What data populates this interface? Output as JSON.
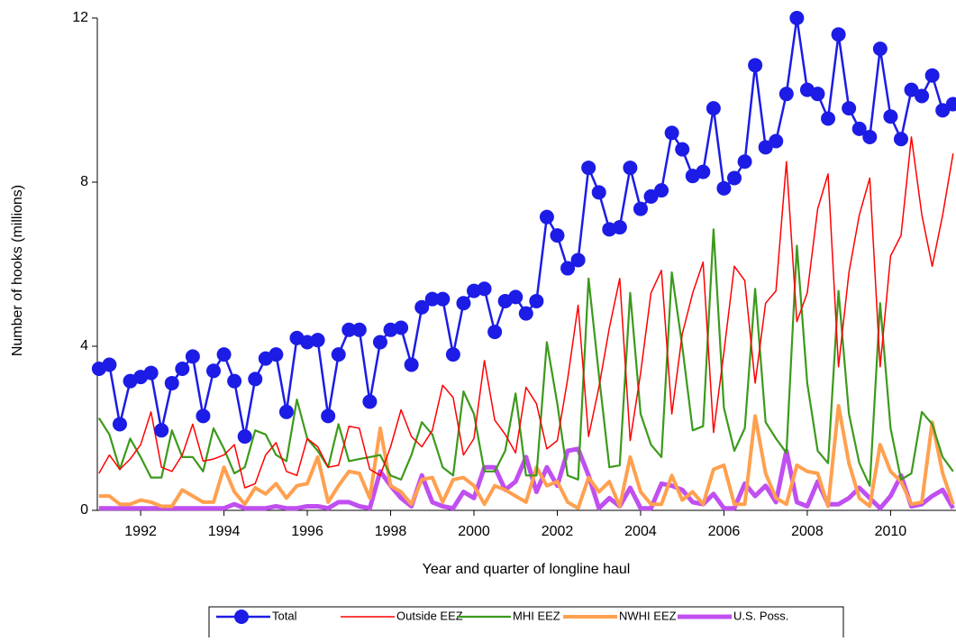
{
  "chart_data": {
    "type": "line",
    "y_label": "Number of hooks (millions)",
    "x_label": "Year and quarter of longline haul",
    "x": [
      1991,
      1991.25,
      1991.5,
      1991.75,
      1992,
      1992.25,
      1992.5,
      1992.75,
      1993,
      1993.25,
      1993.5,
      1993.75,
      1994,
      1994.25,
      1994.5,
      1994.75,
      1995,
      1995.25,
      1995.5,
      1995.75,
      1996,
      1996.25,
      1996.5,
      1996.75,
      1997,
      1997.25,
      1997.5,
      1997.75,
      1998,
      1998.25,
      1998.5,
      1998.75,
      1999,
      1999.25,
      1999.5,
      1999.75,
      2000,
      2000.25,
      2000.5,
      2000.75,
      2001,
      2001.25,
      2001.5,
      2001.75,
      2002,
      2002.25,
      2002.5,
      2002.75,
      2003,
      2003.25,
      2003.5,
      2003.75,
      2004,
      2004.25,
      2004.5,
      2004.75,
      2005,
      2005.25,
      2005.5,
      2005.75,
      2006,
      2006.25,
      2006.5,
      2006.75,
      2007,
      2007.25,
      2007.5,
      2007.75,
      2008,
      2008.25,
      2008.5,
      2008.75,
      2009,
      2009.25,
      2009.5,
      2009.75,
      2010,
      2010.25,
      2010.5,
      2010.75,
      2011,
      2011.25,
      2011.5
    ],
    "series": [
      {
        "name": "Total",
        "color": "#1c1ce6",
        "marker": "circle",
        "values": [
          3.45,
          3.55,
          2.1,
          3.15,
          3.25,
          3.35,
          1.95,
          3.1,
          3.45,
          3.75,
          2.3,
          3.4,
          3.8,
          3.15,
          1.8,
          3.2,
          3.7,
          3.8,
          2.4,
          4.2,
          4.1,
          4.15,
          2.3,
          3.8,
          4.4,
          4.4,
          2.65,
          4.1,
          4.4,
          4.45,
          3.55,
          4.95,
          5.15,
          5.15,
          3.8,
          5.05,
          5.35,
          5.4,
          4.35,
          5.1,
          5.2,
          4.8,
          5.1,
          7.15,
          6.7,
          5.9,
          6.1,
          8.35,
          7.75,
          6.85,
          6.9,
          8.35,
          7.35,
          7.65,
          7.8,
          9.2,
          8.8,
          8.15,
          8.25,
          9.8,
          7.85,
          8.1,
          8.5,
          10.85,
          8.85,
          9.0,
          10.15,
          12.0,
          10.25,
          10.15,
          9.55,
          11.6,
          9.8,
          9.3,
          9.1,
          11.25,
          9.6,
          9.05,
          10.25,
          10.1,
          10.6,
          9.75,
          9.9
        ]
      },
      {
        "name": "Outside EEZ",
        "color": "#ff0000",
        "values": [
          0.9,
          1.35,
          1.0,
          1.25,
          1.6,
          2.4,
          1.05,
          0.95,
          1.35,
          2.1,
          1.2,
          1.25,
          1.35,
          1.6,
          0.55,
          0.65,
          1.35,
          1.65,
          0.95,
          0.85,
          1.75,
          1.55,
          1.05,
          1.1,
          2.05,
          2.0,
          1.0,
          0.85,
          1.55,
          2.45,
          1.8,
          1.55,
          1.95,
          3.05,
          2.75,
          1.35,
          1.75,
          3.65,
          2.2,
          1.85,
          1.4,
          3.0,
          2.6,
          1.5,
          1.7,
          3.2,
          5.0,
          1.8,
          3.0,
          4.45,
          5.65,
          1.7,
          3.35,
          5.3,
          5.85,
          2.35,
          4.3,
          5.3,
          6.05,
          1.9,
          3.85,
          5.95,
          5.6,
          3.1,
          5.05,
          5.35,
          8.5,
          4.6,
          5.3,
          7.35,
          8.2,
          3.5,
          5.8,
          7.2,
          8.1,
          3.5,
          6.2,
          6.7,
          9.1,
          7.2,
          5.95,
          7.2,
          8.7
        ]
      },
      {
        "name": "MHI EEZ",
        "color": "#3c9a1c",
        "values": [
          2.25,
          1.85,
          1.0,
          1.75,
          1.3,
          0.8,
          0.8,
          1.95,
          1.3,
          1.3,
          0.95,
          2.0,
          1.5,
          0.9,
          1.05,
          1.95,
          1.85,
          1.35,
          1.2,
          2.7,
          1.75,
          1.45,
          1.05,
          2.1,
          1.2,
          1.25,
          1.3,
          1.35,
          0.85,
          0.75,
          1.35,
          2.15,
          1.85,
          1.05,
          0.85,
          2.9,
          2.35,
          0.95,
          0.95,
          1.45,
          2.85,
          0.85,
          0.85,
          4.1,
          2.6,
          0.85,
          0.75,
          5.65,
          3.3,
          1.05,
          1.1,
          5.3,
          2.35,
          1.6,
          1.3,
          5.8,
          4.0,
          1.95,
          2.05,
          6.85,
          2.5,
          1.45,
          2.0,
          5.4,
          2.15,
          1.75,
          1.4,
          6.45,
          3.1,
          1.45,
          1.15,
          5.35,
          2.35,
          1.15,
          0.6,
          5.05,
          2.0,
          0.75,
          0.9,
          2.4,
          2.1,
          1.3,
          0.95
        ]
      },
      {
        "name": "NWHI EEZ",
        "color": "#ffa04f",
        "values": [
          0.35,
          0.35,
          0.15,
          0.15,
          0.25,
          0.2,
          0.1,
          0.1,
          0.5,
          0.35,
          0.2,
          0.2,
          1.05,
          0.45,
          0.15,
          0.55,
          0.4,
          0.65,
          0.3,
          0.6,
          0.65,
          1.3,
          0.2,
          0.6,
          0.95,
          0.9,
          0.3,
          2.0,
          0.6,
          0.45,
          0.15,
          0.75,
          0.8,
          0.2,
          0.75,
          0.8,
          0.6,
          0.15,
          0.6,
          0.5,
          0.35,
          0.2,
          1.05,
          0.6,
          0.7,
          0.2,
          0.05,
          0.8,
          0.45,
          0.7,
          0.1,
          1.3,
          0.45,
          0.15,
          0.15,
          0.85,
          0.25,
          0.45,
          0.15,
          1.0,
          1.1,
          0.15,
          0.15,
          2.3,
          0.9,
          0.3,
          0.15,
          1.1,
          0.95,
          0.9,
          0.1,
          2.55,
          1.15,
          0.3,
          0.1,
          1.6,
          0.95,
          0.7,
          0.15,
          0.2,
          2.15,
          0.9,
          0.15
        ]
      },
      {
        "name": "U.S. Poss.",
        "color": "#c04ff0",
        "values": [
          0.05,
          0.05,
          0.05,
          0.05,
          0.05,
          0.05,
          0.05,
          0.05,
          0.05,
          0.05,
          0.05,
          0.05,
          0.05,
          0.15,
          0.05,
          0.05,
          0.05,
          0.1,
          0.05,
          0.05,
          0.1,
          0.1,
          0.05,
          0.2,
          0.2,
          0.1,
          0.05,
          0.95,
          0.6,
          0.3,
          0.1,
          0.85,
          0.2,
          0.1,
          0.05,
          0.45,
          0.3,
          1.05,
          1.05,
          0.5,
          0.7,
          1.3,
          0.45,
          1.05,
          0.6,
          1.45,
          1.5,
          0.85,
          0.05,
          0.3,
          0.1,
          0.55,
          0.05,
          0.05,
          0.65,
          0.6,
          0.5,
          0.2,
          0.15,
          0.4,
          0.05,
          0.05,
          0.65,
          0.35,
          0.6,
          0.2,
          1.45,
          0.2,
          0.1,
          0.7,
          0.15,
          0.15,
          0.3,
          0.55,
          0.3,
          0.05,
          0.35,
          0.85,
          0.1,
          0.15,
          0.35,
          0.5,
          0.05
        ]
      }
    ],
    "xlim": [
      1990.96,
      2011.57
    ],
    "xticks": [
      1992,
      1994,
      1996,
      1998,
      2000,
      2002,
      2004,
      2006,
      2008,
      2010
    ],
    "ylim": [
      0,
      12
    ],
    "yticks": [
      0,
      4,
      8,
      12
    ],
    "legend": "bottom"
  }
}
